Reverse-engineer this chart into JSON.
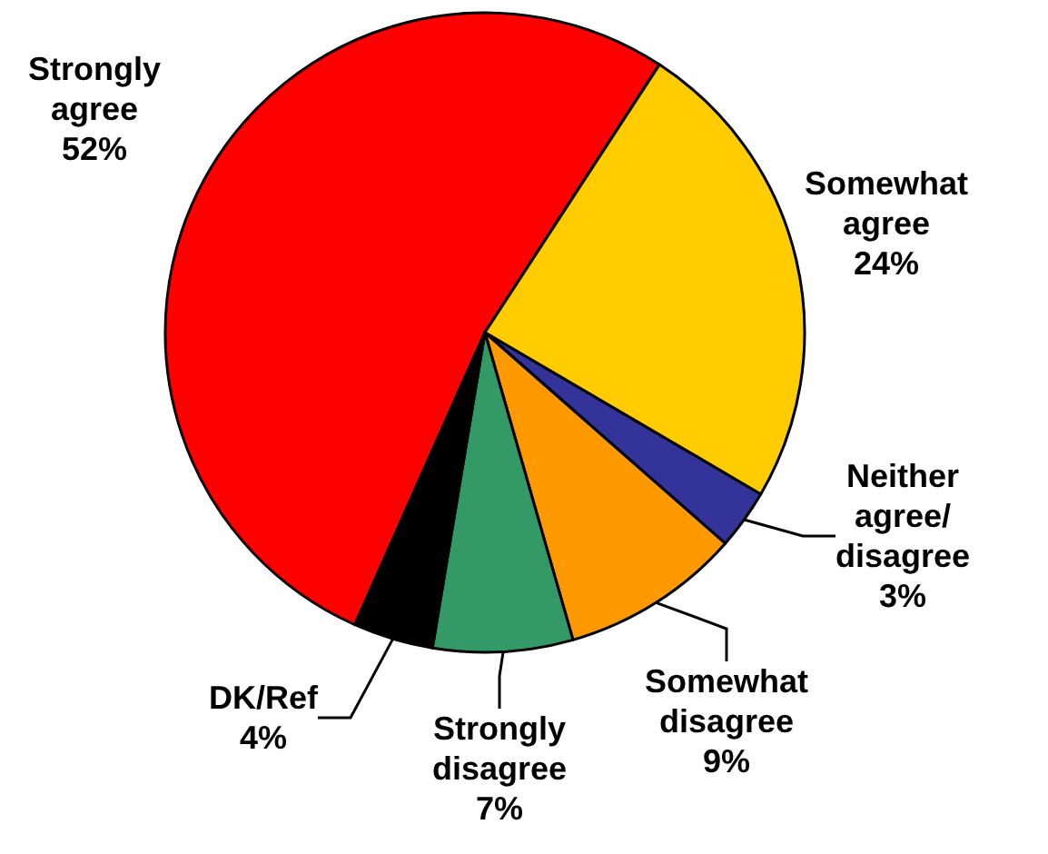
{
  "chart_data": {
    "type": "pie",
    "categories": [
      "Strongly\nagree",
      "Somewhat\nagree",
      "Neither\nagree/\ndisagree",
      "Somewhat\ndisagree",
      "Strongly\ndisagree",
      "DK/Ref"
    ],
    "values": [
      52,
      24,
      3,
      9,
      7,
      4
    ],
    "value_labels": [
      "52%",
      "24%",
      "3%",
      "9%",
      "7%",
      "4%"
    ],
    "colors": [
      "#ff0000",
      "#ffcc00",
      "#333399",
      "#ff9900",
      "#339966",
      "#000000"
    ],
    "legend": false
  }
}
